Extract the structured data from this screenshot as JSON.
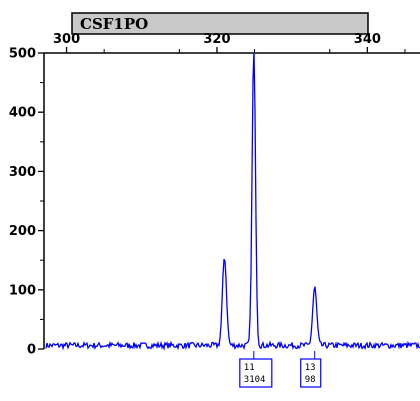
{
  "chart_data": {
    "type": "line",
    "title": "CSF1PO",
    "xlabel": "",
    "ylabel": "",
    "xlim": [
      297,
      347
    ],
    "ylim": [
      0,
      500
    ],
    "x_ticks": [
      300,
      320,
      340
    ],
    "x_tick_labels": [
      "300",
      "320",
      "340"
    ],
    "y_ticks": [
      0,
      100,
      200,
      300,
      400,
      500
    ],
    "y_tick_labels": [
      "0",
      "100",
      "200",
      "300",
      "400",
      "500"
    ],
    "grid": false,
    "legend": "none",
    "series_color": "#0000ff",
    "peaks": [
      {
        "x": 321.0,
        "height": 150
      },
      {
        "x": 324.9,
        "height": 500
      },
      {
        "x": 333.0,
        "height": 98
      }
    ],
    "allele_labels": [
      {
        "x": 324.9,
        "allele": "11",
        "height": "3104"
      },
      {
        "x": 333.0,
        "allele": "13",
        "height": "98"
      }
    ]
  }
}
